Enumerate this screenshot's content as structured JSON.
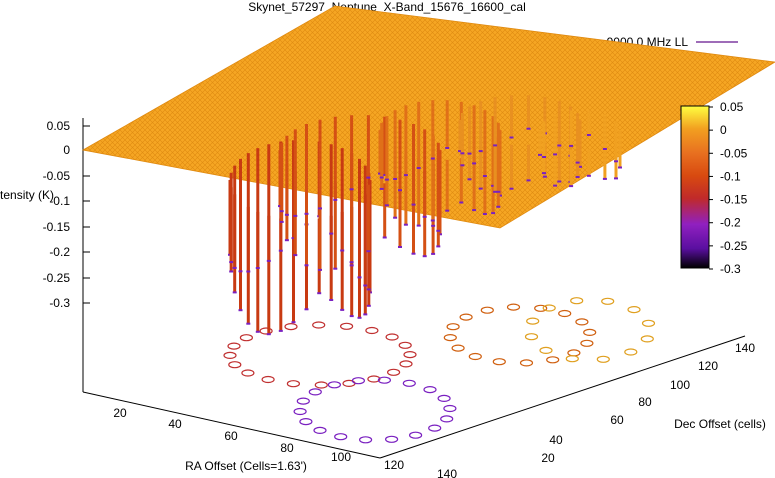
{
  "chart_data": {
    "type": "surface",
    "title": "Skynet_57297_Neptune_X-Band_15676_16600_cal",
    "xlabel": "RA Offset (Cells=1.63')",
    "ylabel": "Dec Offset (cells)",
    "zlabel": "Intensity (K)",
    "legend": {
      "label": "9000.0 MHz LL",
      "color": "#7e3ca0",
      "position": "top-right"
    },
    "x_ticks": [
      "20",
      "40",
      "60",
      "80",
      "100",
      "120",
      "140"
    ],
    "y_ticks": [
      "20",
      "40",
      "60",
      "80",
      "100",
      "120",
      "140"
    ],
    "z_ticks": [
      "0.05",
      "0",
      "-0.05",
      "-0.1",
      "-0.15",
      "-0.2",
      "-0.25",
      "-0.3"
    ],
    "zlim": [
      -0.32,
      0.05
    ],
    "colorbar": {
      "ticks": [
        "0.05",
        "0",
        "-0.05",
        "-0.1",
        "-0.15",
        "-0.2",
        "-0.25",
        "-0.3"
      ],
      "range": [
        -0.3,
        0.05
      ],
      "palette": [
        "#000000",
        "#5a0fa0",
        "#9020c0",
        "#c02a2a",
        "#d84a10",
        "#e87020",
        "#f2a020",
        "#fbd81e",
        "#ffff40"
      ]
    },
    "baseline_level": 0,
    "min_intensity": -0.31,
    "pattern": "figure-eight scan path of dips below a flat 0 K plane"
  }
}
